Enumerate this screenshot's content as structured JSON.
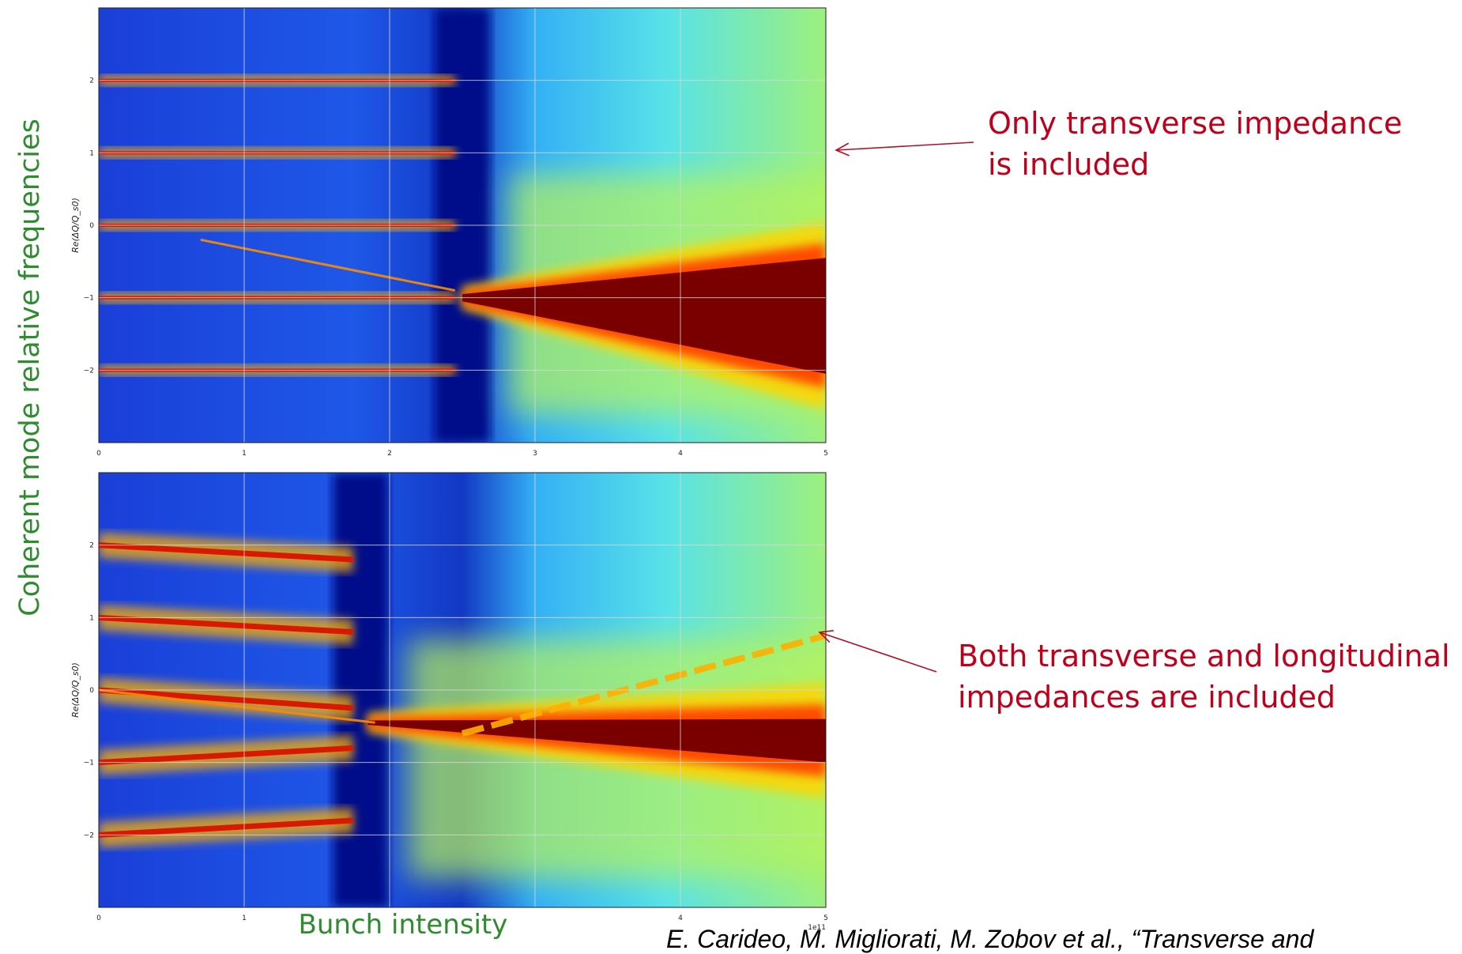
{
  "figure": {
    "ylabel": "Coherent mode relative frequencies",
    "xlabel": "Bunch intensity",
    "citation": "E. Carideo, M. Migliorati, M. Zobov et al., “Transverse and",
    "colors": {
      "ylabel": "#2e8b2e",
      "xlabel": "#2e8b2e",
      "annotation": "#c0001a",
      "arrow": "#b01020"
    }
  },
  "annotations": [
    {
      "lines": [
        "Only transverse impedance",
        "is included"
      ]
    },
    {
      "lines": [
        "Both transverse and longitudinal",
        "impedances are included"
      ]
    }
  ],
  "chart_data": [
    {
      "type": "heatmap",
      "colormap": "jet",
      "grid": true,
      "ylabel": "Re(ΔQ/Q_s0)",
      "xlim": [
        0,
        5
      ],
      "ylim": [
        -3,
        3
      ],
      "x_ticks": [
        "0",
        "1",
        "2",
        "3",
        "4",
        "5"
      ],
      "y_ticks": [
        "2",
        "1",
        "0",
        "−1",
        "−2"
      ],
      "x_offset_label": "",
      "instability_threshold_x": 2.5,
      "mode_lines": [
        {
          "mode": 2,
          "from": 0,
          "to": 2.45,
          "end": 2
        },
        {
          "mode": 1,
          "from": 0,
          "to": 2.45,
          "end": 1
        },
        {
          "mode": 0,
          "from": 0,
          "to": 2.45,
          "end": 0
        },
        {
          "mode": -1,
          "from": 0,
          "to": 2.45,
          "end": -1
        },
        {
          "mode": -2,
          "from": 0,
          "to": 2.45,
          "end": -2
        }
      ],
      "coupled_mode_line": {
        "from": [
          0.7,
          -0.2
        ],
        "to": [
          2.45,
          -0.9
        ]
      },
      "unstable_band": {
        "start_x": 2.5,
        "end_x": 5,
        "center_start": -1,
        "center_end": -1.25,
        "half_width_start": 0.05,
        "half_width_end": 0.8
      }
    },
    {
      "type": "heatmap",
      "colormap": "jet",
      "grid": true,
      "ylabel": "Re(ΔQ/Q_s0)",
      "xlim": [
        0,
        5
      ],
      "ylim": [
        -3,
        3
      ],
      "x_ticks": [
        "0",
        "1",
        "4",
        "5"
      ],
      "x_tick_values": [
        0,
        1,
        4,
        5
      ],
      "y_ticks": [
        "2",
        "1",
        "0",
        "−1",
        "−2"
      ],
      "x_offset_label": "1e11",
      "instability_threshold_x": 1.8,
      "mode_lines": [
        {
          "mode": 2,
          "from": 0,
          "to": 1.75,
          "end": 1.8
        },
        {
          "mode": 1,
          "from": 0,
          "to": 1.75,
          "end": 0.8
        },
        {
          "mode": 0,
          "from": 0,
          "to": 1.75,
          "end": -0.25
        },
        {
          "mode": -1,
          "from": 0,
          "to": 1.75,
          "end": -0.8
        },
        {
          "mode": -2,
          "from": 0,
          "to": 1.75,
          "end": -1.8
        }
      ],
      "coupled_mode_line": {
        "from": [
          0,
          0
        ],
        "to": [
          1.9,
          -0.45
        ]
      },
      "rising_mode": {
        "from": [
          2.5,
          -0.6
        ],
        "to": [
          5,
          0.75
        ]
      },
      "unstable_band": {
        "start_x": 1.85,
        "end_x": 5,
        "center_start": -0.45,
        "center_end": -0.7,
        "half_width_start": 0.03,
        "half_width_end": 0.3
      }
    }
  ]
}
